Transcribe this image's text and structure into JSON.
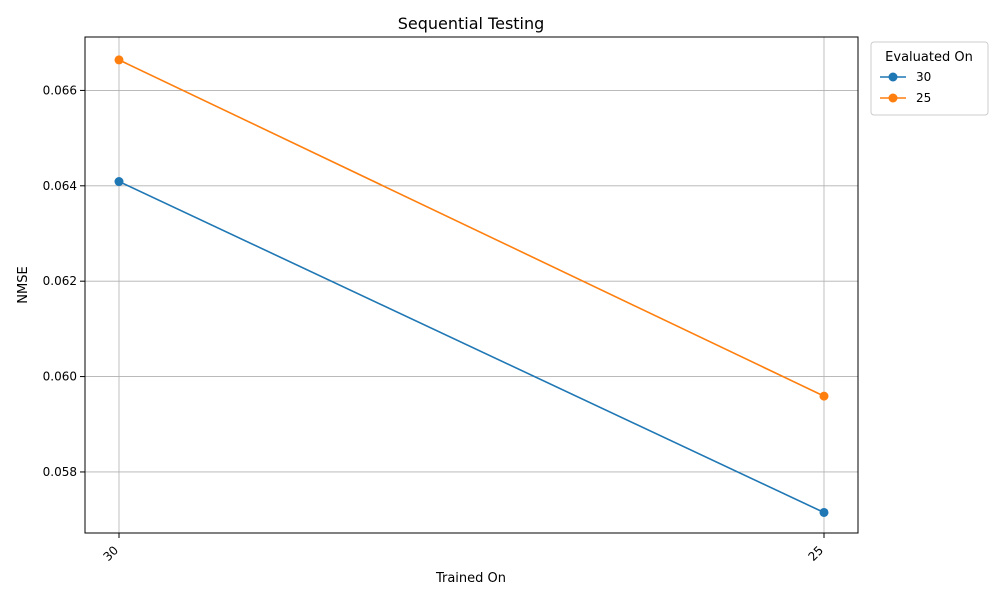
{
  "chart_data": {
    "type": "line",
    "title": "Sequential Testing",
    "xlabel": "Trained On",
    "ylabel": "NMSE",
    "categories": [
      "30",
      "25"
    ],
    "series": [
      {
        "name": "30",
        "values": [
          0.06409,
          0.05715
        ],
        "color": "#1f77b4"
      },
      {
        "name": "25",
        "values": [
          0.06664,
          0.05959
        ],
        "color": "#ff7f0e"
      }
    ],
    "ylim": [
      0.05672,
      0.06712
    ],
    "yticks": [
      "0.058",
      "0.060",
      "0.062",
      "0.064",
      "0.066"
    ],
    "ytick_values": [
      0.058,
      0.06,
      0.062,
      0.064,
      0.066
    ],
    "grid": true,
    "legend": {
      "title": "Evaluated On",
      "placement": "outside-top-right"
    }
  }
}
